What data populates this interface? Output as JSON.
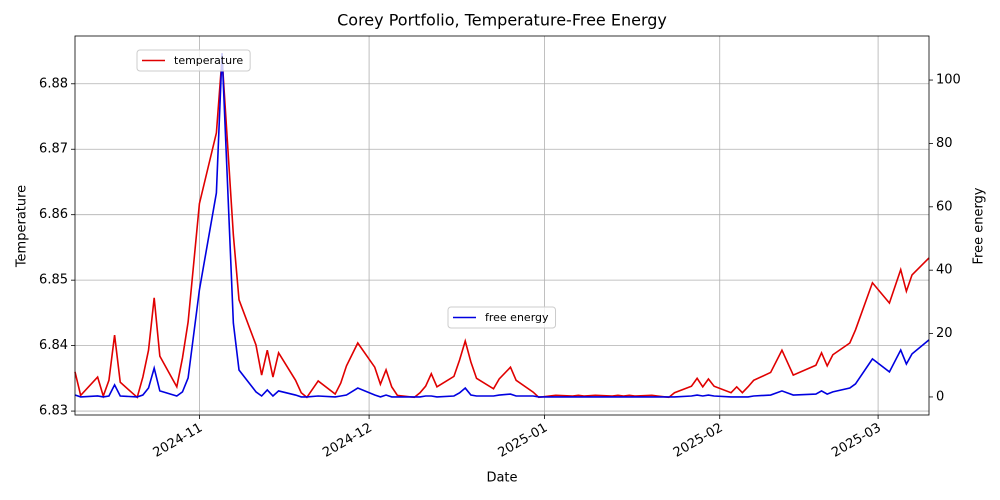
{
  "chart_data": {
    "type": "line",
    "title": "Corey Portfolio, Temperature-Free Energy",
    "xlabel": "Date",
    "ylabel": "Temperature",
    "y2label": "Free energy",
    "x": [
      "2024-10-10",
      "2024-10-11",
      "2024-10-14",
      "2024-10-15",
      "2024-10-16",
      "2024-10-17",
      "2024-10-18",
      "2024-10-21",
      "2024-10-22",
      "2024-10-23",
      "2024-10-24",
      "2024-10-25",
      "2024-10-28",
      "2024-10-29",
      "2024-10-30",
      "2024-11-01",
      "2024-11-04",
      "2024-11-05",
      "2024-11-07",
      "2024-11-08",
      "2024-11-11",
      "2024-11-12",
      "2024-11-13",
      "2024-11-14",
      "2024-11-15",
      "2024-11-18",
      "2024-11-19",
      "2024-11-20",
      "2024-11-22",
      "2024-11-25",
      "2024-11-26",
      "2024-11-27",
      "2024-11-29",
      "2024-12-02",
      "2024-12-03",
      "2024-12-04",
      "2024-12-05",
      "2024-12-06",
      "2024-12-09",
      "2024-12-10",
      "2024-12-11",
      "2024-12-12",
      "2024-12-13",
      "2024-12-16",
      "2024-12-17",
      "2024-12-18",
      "2024-12-19",
      "2024-12-20",
      "2024-12-23",
      "2024-12-24",
      "2024-12-26",
      "2024-12-27",
      "2024-12-30",
      "2024-12-31",
      "2025-01-03",
      "2025-01-06",
      "2025-01-07",
      "2025-01-08",
      "2025-01-10",
      "2025-01-13",
      "2025-01-14",
      "2025-01-15",
      "2025-01-16",
      "2025-01-17",
      "2025-01-20",
      "2025-01-21",
      "2025-01-23",
      "2025-01-24",
      "2025-01-27",
      "2025-01-28",
      "2025-01-29",
      "2025-01-30",
      "2025-01-31",
      "2025-02-03",
      "2025-02-04",
      "2025-02-05",
      "2025-02-06",
      "2025-02-07",
      "2025-02-10",
      "2025-02-12",
      "2025-02-14",
      "2025-02-18",
      "2025-02-19",
      "2025-02-20",
      "2025-02-21",
      "2025-02-24",
      "2025-02-25",
      "2025-02-28",
      "2025-03-03",
      "2025-03-05",
      "2025-03-06",
      "2025-03-07",
      "2025-03-10"
    ],
    "series": [
      {
        "name": "temperature",
        "color": "#e00000",
        "axis": "y",
        "legend": "upper left",
        "values": [
          6.836,
          6.8324,
          6.8352,
          6.8323,
          6.8347,
          6.8416,
          6.8344,
          6.8321,
          6.8352,
          6.8393,
          6.8473,
          6.8384,
          6.8337,
          6.8381,
          6.8436,
          6.8617,
          6.8725,
          6.884,
          6.8569,
          6.847,
          6.8401,
          6.8355,
          6.8393,
          6.8352,
          6.8389,
          6.8347,
          6.8328,
          6.8321,
          6.8346,
          6.8326,
          6.8343,
          6.8369,
          6.8404,
          6.8367,
          6.8341,
          6.8363,
          6.8337,
          6.8324,
          6.8321,
          6.8328,
          6.8338,
          6.8357,
          6.8337,
          6.8353,
          6.8378,
          6.8407,
          6.8375,
          6.835,
          6.8334,
          6.8349,
          6.8367,
          6.8347,
          6.8329,
          6.8321,
          6.8324,
          6.8323,
          6.8324,
          6.8323,
          6.8324,
          6.8323,
          6.8324,
          6.8323,
          6.8324,
          6.8323,
          6.8324,
          6.8323,
          6.8321,
          6.8328,
          6.8338,
          6.835,
          6.8337,
          6.8349,
          6.8338,
          6.8328,
          6.8337,
          6.8328,
          6.8337,
          6.8347,
          6.8359,
          6.8393,
          6.8355,
          6.837,
          6.8389,
          6.8369,
          6.8386,
          6.8404,
          6.8424,
          6.8496,
          6.8465,
          6.8516,
          6.8483,
          6.8508,
          6.8534
        ]
      },
      {
        "name": "free energy",
        "color": "#0000e0",
        "axis": "y2",
        "legend": "center",
        "values": [
          0.6,
          0,
          0.3,
          0,
          0.3,
          3.8,
          0.3,
          0,
          0.6,
          2.8,
          9.1,
          1.9,
          0.3,
          1.6,
          6.0,
          33.8,
          64.4,
          108.5,
          23.3,
          8.5,
          1.6,
          0.3,
          2.2,
          0.3,
          1.9,
          0.6,
          0,
          0,
          0.3,
          0,
          0.3,
          0.6,
          2.8,
          0.6,
          0,
          0.6,
          0,
          0,
          0,
          0,
          0.3,
          0.3,
          0,
          0.3,
          1.3,
          2.8,
          0.6,
          0.3,
          0.3,
          0.6,
          0.9,
          0.3,
          0.3,
          0,
          0,
          0,
          0,
          0,
          0,
          0,
          0,
          0,
          0,
          0,
          0,
          0,
          0,
          0,
          0.3,
          0.6,
          0.3,
          0.6,
          0.3,
          0,
          0,
          0,
          0,
          0.3,
          0.6,
          1.9,
          0.6,
          0.9,
          1.9,
          0.9,
          1.6,
          2.8,
          4.1,
          12.0,
          7.9,
          14.8,
          10.4,
          13.6,
          18.0
        ]
      }
    ],
    "xlim": [
      "2024-10-10",
      "2025-03-10"
    ],
    "xticks": [
      {
        "value": "2024-11-01",
        "label": "2024-11"
      },
      {
        "value": "2024-12-01",
        "label": "2024-12"
      },
      {
        "value": "2025-01-01",
        "label": "2025-01"
      },
      {
        "value": "2025-02-01",
        "label": "2025-02"
      },
      {
        "value": "2025-03-01",
        "label": "2025-03"
      }
    ],
    "ylim": [
      6.8294,
      6.8873
    ],
    "yticks": [
      6.83,
      6.84,
      6.85,
      6.86,
      6.87,
      6.88
    ],
    "y2lim": [
      -5.7,
      113.9
    ],
    "y2ticks": [
      0,
      20,
      40,
      60,
      80,
      100
    ],
    "grid": true
  }
}
